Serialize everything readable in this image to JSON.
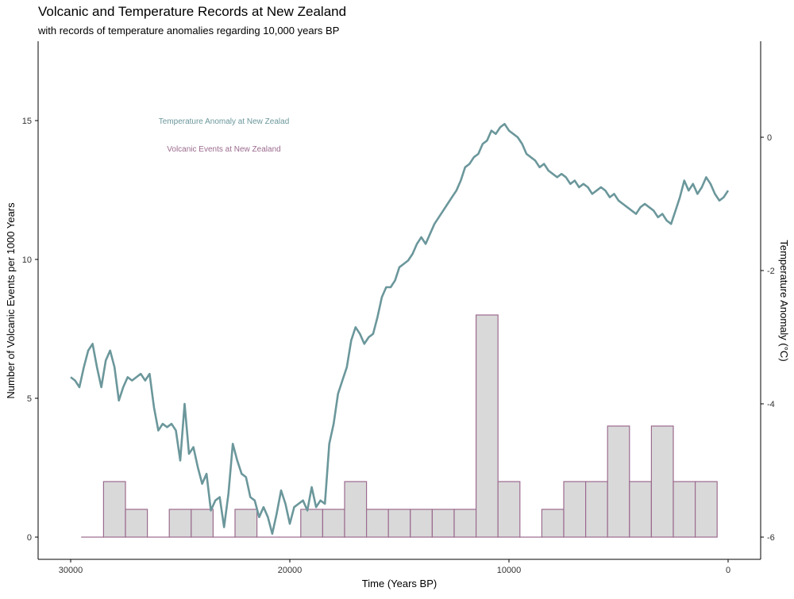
{
  "chart_data": {
    "type": "bar+line",
    "title": "Volcanic and Temperature Records at New Zealand",
    "subtitle": "with records of temperature anomalies regarding 10,000 years BP",
    "xlabel": "Time (Years BP)",
    "ylabel": "Number of Volcanic Events per 1000 Years",
    "y2label": "Temperature Anomaly (°C)",
    "xlim": [
      30000,
      0
    ],
    "ylim": [
      0,
      17
    ],
    "y2lim": [
      -6,
      0.5
    ],
    "x_ticks": [
      30000,
      20000,
      10000,
      0
    ],
    "y_ticks": [
      0,
      5,
      10,
      15
    ],
    "y2_ticks": [
      -6,
      -4,
      -2,
      0
    ],
    "grid": false,
    "colors": {
      "temperature": "#6b979b",
      "volcanic_stroke": "#9b6b8e",
      "volcanic_fill": "#d9d9d9"
    },
    "legend_labels": [
      "Temperature Anomaly at New Zealad",
      "Volcanic Events at New Zealand"
    ],
    "volcanic_bin_width": 1000,
    "volcanic_events": [
      {
        "center": 29000,
        "count": 0
      },
      {
        "center": 28000,
        "count": 2
      },
      {
        "center": 27000,
        "count": 1
      },
      {
        "center": 26000,
        "count": 0
      },
      {
        "center": 25000,
        "count": 1
      },
      {
        "center": 24000,
        "count": 1
      },
      {
        "center": 23000,
        "count": 0
      },
      {
        "center": 22000,
        "count": 1
      },
      {
        "center": 21000,
        "count": 0
      },
      {
        "center": 20000,
        "count": 0
      },
      {
        "center": 19000,
        "count": 1
      },
      {
        "center": 18000,
        "count": 1
      },
      {
        "center": 17000,
        "count": 2
      },
      {
        "center": 16000,
        "count": 1
      },
      {
        "center": 15000,
        "count": 1
      },
      {
        "center": 14000,
        "count": 1
      },
      {
        "center": 13000,
        "count": 1
      },
      {
        "center": 12000,
        "count": 1
      },
      {
        "center": 11000,
        "count": 8
      },
      {
        "center": 10000,
        "count": 2
      },
      {
        "center": 9000,
        "count": 0
      },
      {
        "center": 8000,
        "count": 1
      },
      {
        "center": 7000,
        "count": 2
      },
      {
        "center": 6000,
        "count": 2
      },
      {
        "center": 5000,
        "count": 4
      },
      {
        "center": 4000,
        "count": 2
      },
      {
        "center": 3000,
        "count": 4
      },
      {
        "center": 2000,
        "count": 2
      },
      {
        "center": 1000,
        "count": 2
      }
    ],
    "temperature_anomaly": [
      [
        30000,
        -3.6
      ],
      [
        29800,
        -3.65
      ],
      [
        29600,
        -3.75
      ],
      [
        29400,
        -3.45
      ],
      [
        29200,
        -3.2
      ],
      [
        29000,
        -3.1
      ],
      [
        28800,
        -3.45
      ],
      [
        28600,
        -3.75
      ],
      [
        28400,
        -3.35
      ],
      [
        28200,
        -3.2
      ],
      [
        28000,
        -3.45
      ],
      [
        27800,
        -3.95
      ],
      [
        27600,
        -3.75
      ],
      [
        27400,
        -3.6
      ],
      [
        27200,
        -3.65
      ],
      [
        27000,
        -3.6
      ],
      [
        26800,
        -3.55
      ],
      [
        26600,
        -3.65
      ],
      [
        26400,
        -3.55
      ],
      [
        26200,
        -4.05
      ],
      [
        26000,
        -4.4
      ],
      [
        25800,
        -4.3
      ],
      [
        25600,
        -4.35
      ],
      [
        25400,
        -4.3
      ],
      [
        25200,
        -4.4
      ],
      [
        25000,
        -4.85
      ],
      [
        24800,
        -4.0
      ],
      [
        24600,
        -4.75
      ],
      [
        24400,
        -4.65
      ],
      [
        24200,
        -4.95
      ],
      [
        24000,
        -5.2
      ],
      [
        23800,
        -5.05
      ],
      [
        23600,
        -5.6
      ],
      [
        23400,
        -5.45
      ],
      [
        23200,
        -5.4
      ],
      [
        23000,
        -5.85
      ],
      [
        22800,
        -5.35
      ],
      [
        22600,
        -4.6
      ],
      [
        22400,
        -4.85
      ],
      [
        22200,
        -5.05
      ],
      [
        22000,
        -5.1
      ],
      [
        21800,
        -5.4
      ],
      [
        21600,
        -5.45
      ],
      [
        21400,
        -5.7
      ],
      [
        21200,
        -5.55
      ],
      [
        21000,
        -5.7
      ],
      [
        20800,
        -5.95
      ],
      [
        20600,
        -5.65
      ],
      [
        20400,
        -5.3
      ],
      [
        20200,
        -5.5
      ],
      [
        20000,
        -5.8
      ],
      [
        19800,
        -5.55
      ],
      [
        19600,
        -5.5
      ],
      [
        19400,
        -5.45
      ],
      [
        19200,
        -5.6
      ],
      [
        19000,
        -5.25
      ],
      [
        18800,
        -5.55
      ],
      [
        18600,
        -5.45
      ],
      [
        18400,
        -5.5
      ],
      [
        18200,
        -4.6
      ],
      [
        18000,
        -4.3
      ],
      [
        17800,
        -3.85
      ],
      [
        17600,
        -3.65
      ],
      [
        17400,
        -3.45
      ],
      [
        17200,
        -3.05
      ],
      [
        17000,
        -2.85
      ],
      [
        16800,
        -2.95
      ],
      [
        16600,
        -3.1
      ],
      [
        16400,
        -3.0
      ],
      [
        16200,
        -2.95
      ],
      [
        16000,
        -2.7
      ],
      [
        15800,
        -2.4
      ],
      [
        15600,
        -2.25
      ],
      [
        15400,
        -2.25
      ],
      [
        15200,
        -2.15
      ],
      [
        15000,
        -1.95
      ],
      [
        14800,
        -1.9
      ],
      [
        14600,
        -1.85
      ],
      [
        14400,
        -1.75
      ],
      [
        14200,
        -1.6
      ],
      [
        14000,
        -1.5
      ],
      [
        13800,
        -1.6
      ],
      [
        13600,
        -1.45
      ],
      [
        13400,
        -1.3
      ],
      [
        13200,
        -1.2
      ],
      [
        13000,
        -1.1
      ],
      [
        12800,
        -1.0
      ],
      [
        12600,
        -0.9
      ],
      [
        12400,
        -0.8
      ],
      [
        12200,
        -0.65
      ],
      [
        12000,
        -0.45
      ],
      [
        11800,
        -0.4
      ],
      [
        11600,
        -0.3
      ],
      [
        11400,
        -0.25
      ],
      [
        11200,
        -0.1
      ],
      [
        11000,
        -0.05
      ],
      [
        10800,
        0.1
      ],
      [
        10600,
        0.05
      ],
      [
        10400,
        0.15
      ],
      [
        10200,
        0.2
      ],
      [
        10000,
        0.1
      ],
      [
        9800,
        0.05
      ],
      [
        9600,
        0.0
      ],
      [
        9400,
        -0.1
      ],
      [
        9200,
        -0.25
      ],
      [
        9000,
        -0.3
      ],
      [
        8800,
        -0.35
      ],
      [
        8600,
        -0.45
      ],
      [
        8400,
        -0.4
      ],
      [
        8200,
        -0.5
      ],
      [
        8000,
        -0.55
      ],
      [
        7800,
        -0.6
      ],
      [
        7600,
        -0.55
      ],
      [
        7400,
        -0.6
      ],
      [
        7200,
        -0.7
      ],
      [
        7000,
        -0.65
      ],
      [
        6800,
        -0.75
      ],
      [
        6600,
        -0.7
      ],
      [
        6400,
        -0.75
      ],
      [
        6200,
        -0.85
      ],
      [
        6000,
        -0.8
      ],
      [
        5800,
        -0.75
      ],
      [
        5600,
        -0.8
      ],
      [
        5400,
        -0.9
      ],
      [
        5200,
        -0.85
      ],
      [
        5000,
        -0.95
      ],
      [
        4800,
        -1.0
      ],
      [
        4600,
        -1.05
      ],
      [
        4400,
        -1.1
      ],
      [
        4200,
        -1.15
      ],
      [
        4000,
        -1.05
      ],
      [
        3800,
        -1.0
      ],
      [
        3600,
        -1.05
      ],
      [
        3400,
        -1.1
      ],
      [
        3200,
        -1.2
      ],
      [
        3000,
        -1.15
      ],
      [
        2800,
        -1.25
      ],
      [
        2600,
        -1.3
      ],
      [
        2400,
        -1.1
      ],
      [
        2200,
        -0.9
      ],
      [
        2000,
        -0.65
      ],
      [
        1800,
        -0.8
      ],
      [
        1600,
        -0.7
      ],
      [
        1400,
        -0.85
      ],
      [
        1200,
        -0.75
      ],
      [
        1000,
        -0.6
      ],
      [
        800,
        -0.7
      ],
      [
        600,
        -0.85
      ],
      [
        400,
        -0.95
      ],
      [
        200,
        -0.9
      ],
      [
        0,
        -0.8
      ]
    ]
  }
}
